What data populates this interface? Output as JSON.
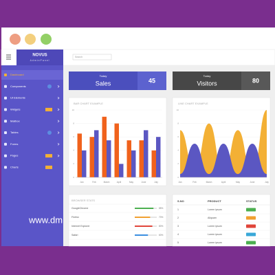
{
  "brand": {
    "title": "NOVUS",
    "subtitle": "AdminPanel"
  },
  "search_placeholder": "Search",
  "sidebar": [
    {
      "label": "Dashboard"
    },
    {
      "label": "Components"
    },
    {
      "label": "UI Elements"
    },
    {
      "label": "Widgets"
    },
    {
      "label": "Mailbox"
    },
    {
      "label": "Tables"
    },
    {
      "label": "Forms"
    },
    {
      "label": "Pages"
    },
    {
      "label": "Charts"
    }
  ],
  "stats": [
    {
      "label": "Today",
      "title": "Sales",
      "value": 45
    },
    {
      "label": "Today",
      "title": "Visitors",
      "value": 80
    }
  ],
  "bar_chart": {
    "type": "bar",
    "title": "BAR CHART EXAMPLE",
    "categories": [
      "Jan",
      "Feb",
      "March",
      "April",
      "May",
      "June",
      "July"
    ],
    "series": [
      {
        "color": "#f0621c",
        "values": [
          6.5,
          6,
          9,
          8,
          5.5,
          5.5,
          4
        ]
      },
      {
        "color": "#5b57c2",
        "values": [
          4,
          7,
          5.5,
          2,
          4,
          7,
          6
        ]
      }
    ],
    "ylim": [
      0,
      10
    ],
    "yticks": [
      0,
      2,
      4,
      6,
      8,
      10
    ]
  },
  "line_chart": {
    "type": "area",
    "title": "LINE CHART EXAMPLE",
    "categories": [
      "Jan",
      "Feb",
      "March",
      "April",
      "May",
      "June",
      "July"
    ],
    "series": [
      {
        "color": "#f3b035",
        "values": [
          7,
          1,
          8,
          0.5,
          7,
          0.5,
          10
        ]
      },
      {
        "color": "#5b57c2",
        "values": [
          0.5,
          5,
          0.5,
          5,
          0.5,
          5,
          0.5
        ]
      }
    ],
    "ylim": [
      0,
      10
    ],
    "yticks": [
      0,
      2,
      4,
      6,
      8,
      10
    ]
  },
  "browser_stats": {
    "title": "BROWSER STATS",
    "rows": [
      {
        "name": "GoogleChrome",
        "color": "#4caf50",
        "value": 85,
        "value_label": "85%"
      },
      {
        "name": "Firefox",
        "color": "#f0a030",
        "value": 70,
        "value_label": "70%"
      },
      {
        "name": "Internet Explorer",
        "color": "#e0453a",
        "value": 80,
        "value_label": "80%"
      },
      {
        "name": "Safari",
        "color": "#3a8ee0",
        "value": 60,
        "value_label": "60%"
      }
    ]
  },
  "product_table": {
    "columns": [
      "S.NO",
      "PRODUCT",
      "STATUS"
    ],
    "rows": [
      [
        "1",
        "Lorem ipsum"
      ],
      [
        "2",
        "Aliquam"
      ],
      [
        "3",
        "Lorem ipsum"
      ],
      [
        "4",
        "Lorem ipsum"
      ],
      [
        "5",
        "Lorem ipsum"
      ]
    ]
  },
  "watermark": "www.dm"
}
